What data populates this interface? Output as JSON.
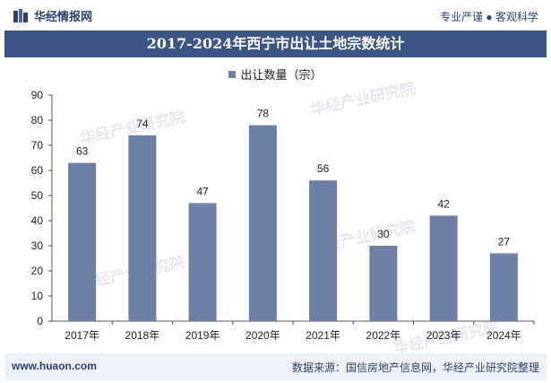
{
  "header": {
    "brand": "华经情报网",
    "tagline": "专业严谨 ● 客观科学"
  },
  "footer": {
    "url": "www.huaon.com",
    "source": "数据来源：国信房地产信息网，华经产业研究院整理"
  },
  "watermark": {
    "text": "华经产业研究院",
    "url": "www.huaon.com"
  },
  "colors": {
    "bar": "#6e7fa6",
    "title_bg": "#3d5487",
    "brand": "#2d3f73"
  },
  "chart_data": {
    "type": "bar",
    "title": "2017-2024年西宁市出让土地宗数统计",
    "categories": [
      "2017年",
      "2018年",
      "2019年",
      "2020年",
      "2021年",
      "2022年",
      "2023年",
      "2024年"
    ],
    "series": [
      {
        "name": "出让数量（宗）",
        "values": [
          63,
          74,
          47,
          78,
          56,
          30,
          42,
          27
        ]
      }
    ],
    "ylim": [
      0,
      90
    ],
    "yticks": [
      0,
      10,
      20,
      30,
      40,
      50,
      60,
      70,
      80,
      90
    ],
    "legend": "top-center",
    "grid": false
  }
}
